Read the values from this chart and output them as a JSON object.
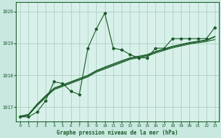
{
  "background_color": "#c8e8e0",
  "plot_bg_color": "#d8f0ea",
  "grid_color": "#a0c8b8",
  "line_color": "#1a5c28",
  "title": "Graphe pression niveau de la mer (hPa)",
  "xlim": [
    -0.5,
    23.5
  ],
  "ylim": [
    1016.55,
    1020.3
  ],
  "yticks": [
    1017,
    1018,
    1019,
    1020
  ],
  "xticks": [
    0,
    1,
    2,
    3,
    4,
    5,
    6,
    7,
    8,
    9,
    10,
    11,
    12,
    13,
    14,
    15,
    16,
    17,
    18,
    19,
    20,
    21,
    22,
    23
  ],
  "series_spiky": [
    1016.7,
    1016.7,
    1016.85,
    1017.2,
    1017.8,
    1017.75,
    1017.5,
    1017.4,
    1018.85,
    1019.45,
    1019.95,
    1018.85,
    1018.8,
    1018.65,
    1018.55,
    1018.55,
    1018.85,
    1018.85,
    1019.15,
    1019.15,
    1019.15,
    1019.15,
    1019.15,
    1019.5
  ],
  "series_trend1": [
    1016.7,
    1016.75,
    1017.05,
    1017.3,
    1017.55,
    1017.65,
    1017.75,
    1017.85,
    1017.95,
    1018.1,
    1018.2,
    1018.3,
    1018.4,
    1018.5,
    1018.55,
    1018.6,
    1018.7,
    1018.78,
    1018.86,
    1018.92,
    1018.98,
    1019.02,
    1019.06,
    1019.12
  ],
  "series_trend2": [
    1016.7,
    1016.76,
    1017.08,
    1017.33,
    1017.58,
    1017.68,
    1017.78,
    1017.88,
    1017.98,
    1018.13,
    1018.23,
    1018.33,
    1018.43,
    1018.53,
    1018.58,
    1018.63,
    1018.73,
    1018.81,
    1018.89,
    1018.95,
    1019.01,
    1019.05,
    1019.09,
    1019.2
  ],
  "series_trend3": [
    1016.72,
    1016.78,
    1017.1,
    1017.36,
    1017.6,
    1017.7,
    1017.8,
    1017.9,
    1018.0,
    1018.15,
    1018.26,
    1018.36,
    1018.46,
    1018.55,
    1018.6,
    1018.65,
    1018.75,
    1018.83,
    1018.91,
    1018.97,
    1019.03,
    1019.07,
    1019.11,
    1019.22
  ],
  "marker": "*",
  "markersize": 3.0,
  "linewidth": 0.85,
  "title_fontsize": 5.5,
  "tick_fontsize": 4.5
}
